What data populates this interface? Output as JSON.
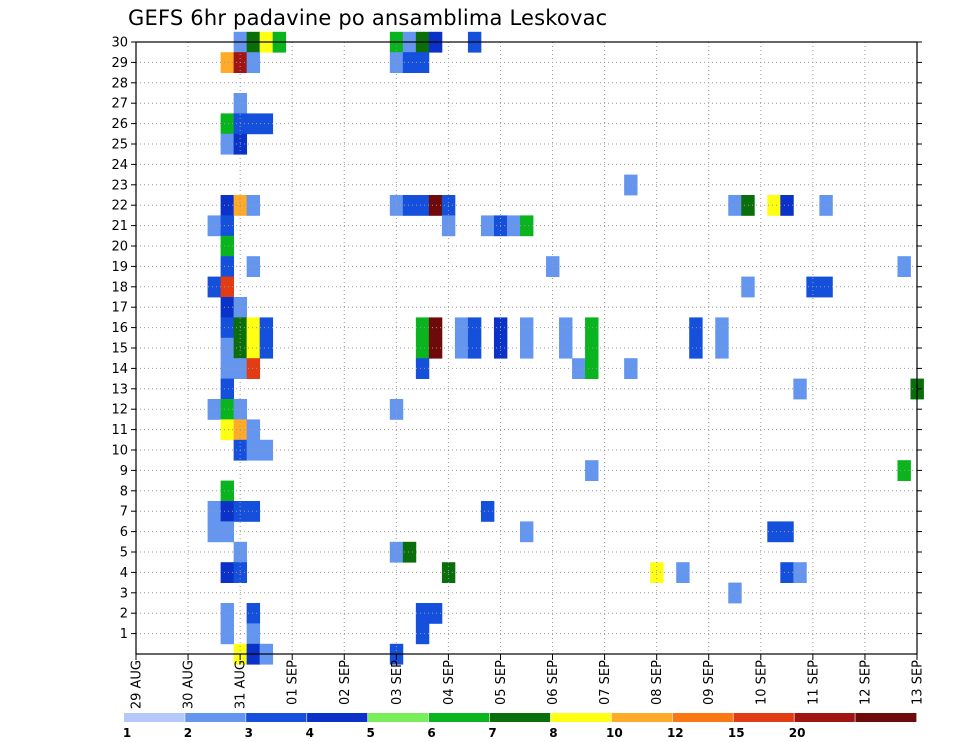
{
  "chart_data": {
    "type": "heatmap",
    "title": "GEFS 6hr padavine po ansamblima Leskovac",
    "xlabel": "",
    "ylabel": "",
    "x_tick_labels": [
      "29 AUG",
      "30 AUG",
      "31 AUG",
      "01 SEP",
      "02 SEP",
      "03 SEP",
      "04 SEP",
      "05 SEP",
      "06 SEP",
      "07 SEP",
      "08 SEP",
      "09 SEP",
      "10 SEP",
      "11 SEP",
      "12 SEP",
      "13 SEP"
    ],
    "x_unit": "6h steps from 29 AUG 00Z",
    "x_range": [
      0,
      60
    ],
    "y_tick_labels": [
      "1",
      "2",
      "3",
      "4",
      "5",
      "6",
      "7",
      "8",
      "9",
      "10",
      "11",
      "12",
      "13",
      "14",
      "15",
      "16",
      "17",
      "18",
      "19",
      "20",
      "21",
      "22",
      "23",
      "24",
      "25",
      "26",
      "27",
      "28",
      "29",
      "30"
    ],
    "y_range": [
      0,
      30
    ],
    "grid": true,
    "legend_position": "bottom",
    "legend": {
      "labels": [
        "1",
        "2",
        "3",
        "4",
        "5",
        "6",
        "7",
        "8",
        "10",
        "12",
        "15",
        "20"
      ],
      "colors": [
        "#b4c8fa",
        "#6496f0",
        "#1450dc",
        "#0a32c8",
        "#78ee5a",
        "#0ab41e",
        "#0a6e0a",
        "#ffff14",
        "#ffaa28",
        "#fa7814",
        "#e13c14",
        "#a01414",
        "#6e0a0a"
      ]
    },
    "cells": [
      [
        8,
        30,
        1
      ],
      [
        9,
        30,
        6
      ],
      [
        10,
        30,
        7
      ],
      [
        11,
        30,
        5
      ],
      [
        20,
        30,
        5
      ],
      [
        21,
        30,
        1
      ],
      [
        22,
        30,
        6
      ],
      [
        23,
        30,
        3
      ],
      [
        26,
        30,
        2
      ],
      [
        7,
        29,
        8
      ],
      [
        8,
        29,
        11
      ],
      [
        9,
        29,
        1
      ],
      [
        20,
        29,
        1
      ],
      [
        21,
        29,
        2
      ],
      [
        22,
        29,
        2
      ],
      [
        8,
        27,
        1
      ],
      [
        7,
        26,
        5
      ],
      [
        8,
        26,
        2
      ],
      [
        9,
        26,
        2
      ],
      [
        10,
        26,
        2
      ],
      [
        7,
        25,
        1
      ],
      [
        8,
        25,
        3
      ],
      [
        38,
        23,
        1
      ],
      [
        7,
        22,
        3
      ],
      [
        8,
        22,
        8
      ],
      [
        9,
        22,
        1
      ],
      [
        20,
        22,
        1
      ],
      [
        21,
        22,
        2
      ],
      [
        22,
        22,
        2
      ],
      [
        23,
        22,
        12
      ],
      [
        24,
        22,
        2
      ],
      [
        46,
        22,
        1
      ],
      [
        47,
        22,
        6
      ],
      [
        49,
        22,
        7
      ],
      [
        50,
        22,
        3
      ],
      [
        53,
        22,
        1
      ],
      [
        6,
        21,
        1
      ],
      [
        7,
        21,
        2
      ],
      [
        24,
        21,
        1
      ],
      [
        27,
        21,
        1
      ],
      [
        28,
        21,
        2
      ],
      [
        29,
        21,
        1
      ],
      [
        30,
        21,
        5
      ],
      [
        7,
        20,
        5
      ],
      [
        7,
        19,
        2
      ],
      [
        9,
        19,
        1
      ],
      [
        32,
        19,
        1
      ],
      [
        59,
        19,
        1
      ],
      [
        6,
        18,
        2
      ],
      [
        7,
        18,
        10
      ],
      [
        47,
        18,
        1
      ],
      [
        52,
        18,
        2
      ],
      [
        53,
        18,
        2
      ],
      [
        7,
        17,
        3
      ],
      [
        8,
        17,
        1
      ],
      [
        7,
        16,
        2
      ],
      [
        8,
        16,
        6
      ],
      [
        9,
        16,
        7
      ],
      [
        10,
        16,
        2
      ],
      [
        22,
        16,
        5
      ],
      [
        23,
        16,
        12
      ],
      [
        25,
        16,
        1
      ],
      [
        26,
        16,
        2
      ],
      [
        28,
        16,
        3
      ],
      [
        30,
        16,
        1
      ],
      [
        33,
        16,
        1
      ],
      [
        35,
        16,
        5
      ],
      [
        43,
        16,
        2
      ],
      [
        45,
        16,
        1
      ],
      [
        7,
        15,
        1
      ],
      [
        8,
        15,
        6
      ],
      [
        9,
        15,
        7
      ],
      [
        10,
        15,
        2
      ],
      [
        22,
        15,
        5
      ],
      [
        23,
        15,
        12
      ],
      [
        25,
        15,
        1
      ],
      [
        26,
        15,
        2
      ],
      [
        28,
        15,
        3
      ],
      [
        30,
        15,
        1
      ],
      [
        33,
        15,
        1
      ],
      [
        35,
        15,
        5
      ],
      [
        43,
        15,
        2
      ],
      [
        45,
        15,
        1
      ],
      [
        7,
        14,
        1
      ],
      [
        8,
        14,
        1
      ],
      [
        9,
        14,
        10
      ],
      [
        22,
        14,
        2
      ],
      [
        34,
        14,
        1
      ],
      [
        35,
        14,
        5
      ],
      [
        38,
        14,
        1
      ],
      [
        7,
        13,
        2
      ],
      [
        51,
        13,
        1
      ],
      [
        60,
        13,
        6
      ],
      [
        6,
        12,
        1
      ],
      [
        7,
        12,
        5
      ],
      [
        8,
        12,
        1
      ],
      [
        20,
        12,
        1
      ],
      [
        7,
        11,
        7
      ],
      [
        8,
        11,
        8
      ],
      [
        9,
        11,
        1
      ],
      [
        8,
        10,
        2
      ],
      [
        9,
        10,
        1
      ],
      [
        10,
        10,
        1
      ],
      [
        35,
        9,
        1
      ],
      [
        59,
        9,
        5
      ],
      [
        7,
        8,
        5
      ],
      [
        6,
        7,
        1
      ],
      [
        7,
        7,
        3
      ],
      [
        8,
        7,
        2
      ],
      [
        9,
        7,
        2
      ],
      [
        27,
        7,
        2
      ],
      [
        6,
        6,
        1
      ],
      [
        7,
        6,
        1
      ],
      [
        30,
        6,
        1
      ],
      [
        49,
        6,
        2
      ],
      [
        50,
        6,
        2
      ],
      [
        8,
        5,
        1
      ],
      [
        20,
        5,
        1
      ],
      [
        21,
        5,
        6
      ],
      [
        7,
        4,
        3
      ],
      [
        8,
        4,
        2
      ],
      [
        24,
        4,
        6
      ],
      [
        40,
        4,
        7
      ],
      [
        42,
        4,
        1
      ],
      [
        50,
        4,
        2
      ],
      [
        51,
        4,
        1
      ],
      [
        46,
        3,
        1
      ],
      [
        7,
        2,
        1
      ],
      [
        9,
        2,
        2
      ],
      [
        22,
        2,
        2
      ],
      [
        23,
        2,
        2
      ],
      [
        7,
        1,
        1
      ],
      [
        9,
        1,
        1
      ],
      [
        22,
        1,
        2
      ],
      [
        8,
        0,
        7
      ],
      [
        9,
        0,
        3
      ],
      [
        10,
        0,
        1
      ],
      [
        20,
        0,
        2
      ]
    ]
  }
}
